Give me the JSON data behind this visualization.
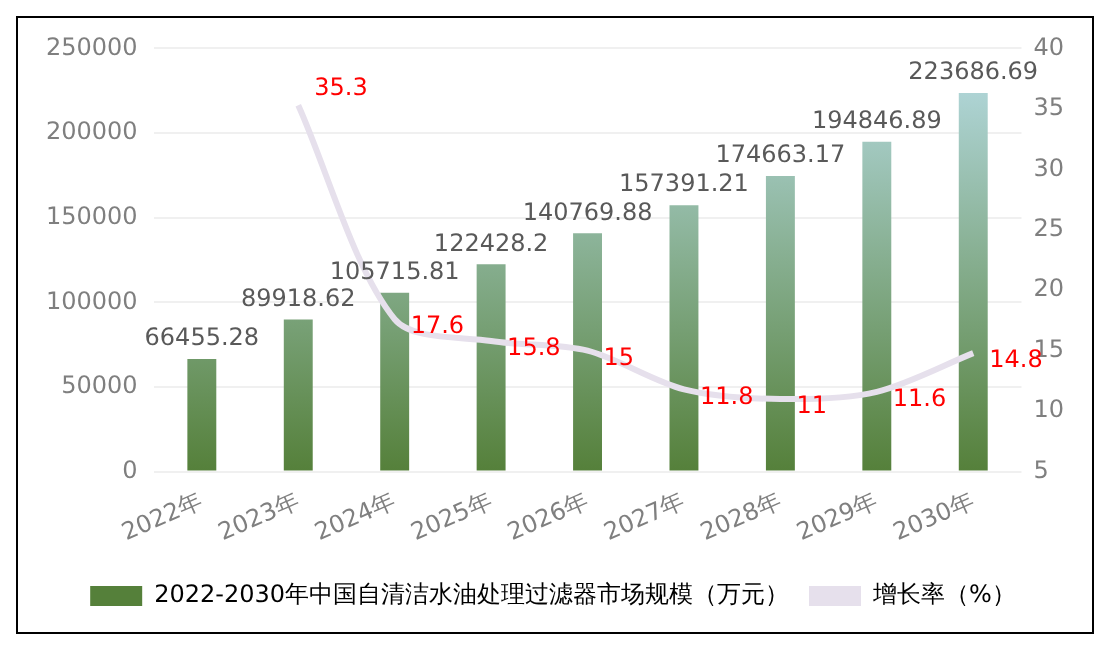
{
  "chart_data": {
    "type": "bar",
    "categories": [
      "2022年",
      "2023年",
      "2024年",
      "2025年",
      "2026年",
      "2027年",
      "2028年",
      "2029年",
      "2030年"
    ],
    "series": [
      {
        "name": "2022-2030年中国自清洁水油处理过滤器市场规模（万元）",
        "color": "#55803a",
        "values": [
          66455.28,
          89918.62,
          105715.81,
          122428.2,
          140769.88,
          157391.21,
          174663.17,
          194846.89,
          223686.69
        ]
      },
      {
        "name": "增长率（%）",
        "type": "line",
        "axis": "y2",
        "color": "#e6e0ec",
        "values": [
          null,
          35.3,
          17.6,
          15.8,
          15,
          11.8,
          11,
          11.6,
          14.8
        ]
      }
    ],
    "ylim": [
      0,
      250000
    ],
    "yticks": [
      0,
      50000,
      100000,
      150000,
      200000,
      250000
    ],
    "y2lim": [
      5,
      40
    ],
    "y2ticks": [
      5,
      10,
      15,
      20,
      25,
      30,
      35,
      40
    ],
    "grid": "y",
    "legend": "bottom",
    "data_labels": true,
    "marker": "none"
  }
}
